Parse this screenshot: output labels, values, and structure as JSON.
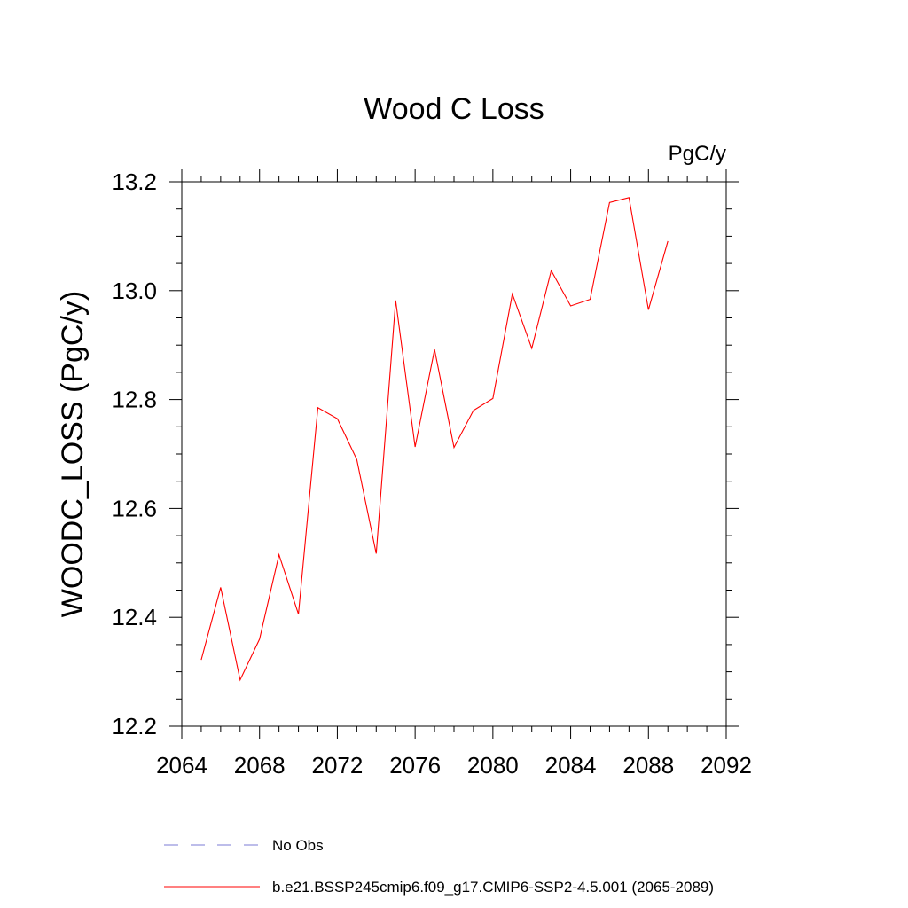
{
  "chart_data": {
    "type": "line",
    "title": "Wood C Loss",
    "units_label": "PgC/y",
    "ylabel": "WOODC_LOSS  (PgC/y)",
    "xlabel": "",
    "xlim": [
      2064,
      2092
    ],
    "ylim": [
      12.2,
      13.2
    ],
    "x_ticks": [
      "2064",
      "2068",
      "2072",
      "2076",
      "2080",
      "2084",
      "2088",
      "2092"
    ],
    "y_ticks": [
      "12.2",
      "12.4",
      "12.6",
      "12.8",
      "13.0",
      "13.2"
    ],
    "grid": false,
    "legend_position": "bottom",
    "series": [
      {
        "name": "No Obs",
        "color": "#7b7bd6",
        "style": "dashed",
        "x": [],
        "values": []
      },
      {
        "name": "b.e21.BSSP245cmip6.f09_g17.CMIP6-SSP2-4.5.001 (2065-2089)",
        "color": "#ff0000",
        "style": "solid",
        "x": [
          2065,
          2066,
          2067,
          2068,
          2069,
          2070,
          2071,
          2072,
          2073,
          2074,
          2075,
          2076,
          2077,
          2078,
          2079,
          2080,
          2081,
          2082,
          2083,
          2084,
          2085,
          2086,
          2087,
          2088,
          2089
        ],
        "values": [
          12.322,
          12.455,
          12.285,
          12.36,
          12.515,
          12.406,
          12.785,
          12.765,
          12.69,
          12.517,
          12.982,
          12.713,
          12.892,
          12.712,
          12.78,
          12.802,
          12.994,
          12.894,
          13.037,
          12.972,
          12.984,
          13.162,
          13.171,
          12.965,
          13.091
        ]
      }
    ]
  }
}
